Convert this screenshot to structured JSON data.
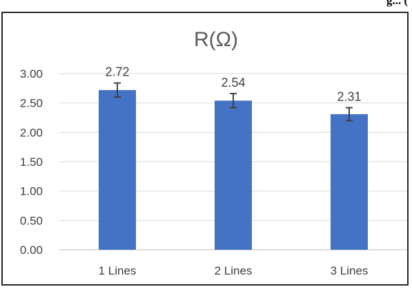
{
  "header_fragment": "g... (",
  "chart_data": {
    "type": "bar",
    "title": "R(Ω)",
    "xlabel": "",
    "ylabel": "",
    "categories": [
      "1 Lines",
      "2 Lines",
      "3 Lines"
    ],
    "values": [
      2.72,
      2.54,
      2.31
    ],
    "value_labels": [
      "2.72",
      "2.54",
      "2.31"
    ],
    "error": [
      0.12,
      0.12,
      0.11
    ],
    "ylim": [
      0,
      3.0
    ],
    "yticks": [
      0.0,
      0.5,
      1.0,
      1.5,
      2.0,
      2.5,
      3.0
    ],
    "ytick_labels": [
      "0.00",
      "0.50",
      "1.00",
      "1.50",
      "2.00",
      "2.50",
      "3.00"
    ],
    "grid": true,
    "legend": "none",
    "bar_color": "#4472C4",
    "error_color": "#404040",
    "grid_color": "#D9D9D9"
  }
}
